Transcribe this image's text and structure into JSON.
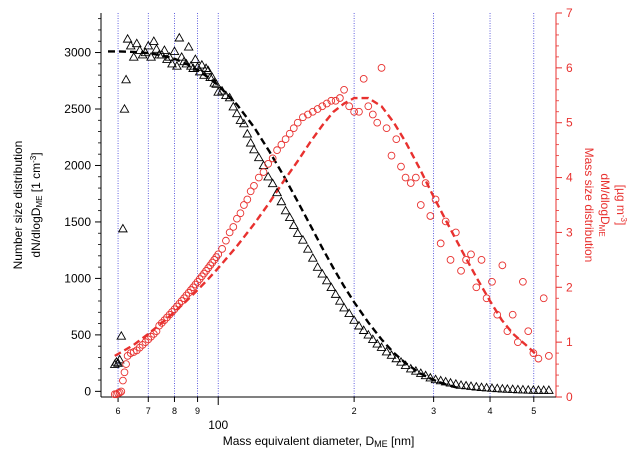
{
  "chart_data": {
    "type": "scatter",
    "xlabel": {
      "main": "Mass equivalent diameter, D",
      "sub": "ME",
      "units": "[nm]"
    },
    "x_scale": "log",
    "xlim": [
      55,
      560
    ],
    "x_major_tick": {
      "value": 100,
      "label": "100"
    },
    "x_minor_ticks": [
      {
        "value": 60,
        "label": "6"
      },
      {
        "value": 70,
        "label": "7"
      },
      {
        "value": 80,
        "label": "8"
      },
      {
        "value": 90,
        "label": "9"
      },
      {
        "value": 200,
        "label": "2"
      },
      {
        "value": 300,
        "label": "3"
      },
      {
        "value": 400,
        "label": "4"
      },
      {
        "value": 500,
        "label": "5"
      }
    ],
    "vertical_gridlines": [
      60,
      70,
      80,
      90,
      100,
      200,
      300,
      400,
      500
    ],
    "y_left": {
      "label_line1": "Number size distribution",
      "label_line2": {
        "pre": "dN/dlogD",
        "sub": "ME",
        "units_pre": "[1 cm",
        "units_sup": "-3",
        "units_post": "]"
      },
      "ylim": [
        -50,
        3350
      ],
      "ticks": [
        0,
        500,
        1000,
        1500,
        2000,
        2500,
        3000
      ],
      "color": "#000000"
    },
    "y_right": {
      "label_line1": "Mass size distribution",
      "label_line2": {
        "pre": "dM/dlogD",
        "sub": "ME"
      },
      "label_line3": {
        "pre": "[µg m",
        "sup": "-3",
        "post": "]"
      },
      "ylim": [
        0,
        7
      ],
      "ticks": [
        0,
        1,
        2,
        3,
        4,
        5,
        6,
        7
      ],
      "color": "#e8312f"
    },
    "series": [
      {
        "marker": "triangle",
        "axis": "left",
        "color": "#000000",
        "x": [
          59,
          59.5,
          60,
          60.5,
          61,
          61.5,
          62,
          62.5,
          63,
          64,
          65,
          66,
          67,
          68,
          69,
          70,
          71,
          72,
          73,
          74,
          75,
          76,
          77,
          78,
          79,
          80,
          81,
          82,
          83,
          84,
          85,
          86,
          87,
          88,
          89,
          90,
          91,
          92,
          93,
          94,
          95,
          96,
          97,
          98,
          99,
          100,
          102,
          104,
          106,
          108,
          110,
          112,
          114,
          116,
          118,
          120,
          123,
          126,
          129,
          132,
          135,
          138,
          141,
          144,
          147,
          150,
          154,
          158,
          162,
          166,
          170,
          174,
          178,
          182,
          186,
          190,
          195,
          200,
          205,
          210,
          215,
          220,
          225,
          230,
          236,
          242,
          248,
          254,
          260,
          267,
          274,
          281,
          288,
          295,
          303,
          311,
          319,
          327,
          336,
          345,
          354,
          363,
          373,
          383,
          393,
          404,
          415,
          426,
          437,
          449,
          461,
          473,
          486,
          499,
          512,
          526,
          540
        ],
        "y": [
          240,
          260,
          250,
          280,
          490,
          1440,
          2500,
          2760,
          3120,
          3060,
          2960,
          3080,
          3020,
          2980,
          3000,
          3060,
          2960,
          3100,
          3030,
          2980,
          2980,
          3020,
          2940,
          2960,
          2900,
          3010,
          2880,
          3130,
          2960,
          2920,
          2900,
          3050,
          2880,
          2860,
          2940,
          2870,
          2830,
          2890,
          2800,
          2860,
          2840,
          2780,
          2780,
          2730,
          2720,
          2650,
          2660,
          2620,
          2600,
          2520,
          2460,
          2400,
          2370,
          2280,
          2200,
          2140,
          2070,
          2000,
          1900,
          1840,
          1760,
          1680,
          1600,
          1540,
          1470,
          1400,
          1340,
          1260,
          1180,
          1100,
          1040,
          980,
          920,
          860,
          800,
          740,
          690,
          630,
          580,
          540,
          500,
          460,
          420,
          390,
          350,
          320,
          290,
          260,
          230,
          200,
          180,
          160,
          140,
          120,
          105,
          95,
          85,
          75,
          65,
          55,
          50,
          45,
          40,
          35,
          32,
          28,
          25,
          22,
          20,
          18,
          15,
          14,
          12,
          11,
          10,
          10,
          10
        ]
      },
      {
        "marker": "circle",
        "axis": "right",
        "color": "#e8312f",
        "x": [
          59,
          59.5,
          60,
          60.5,
          61,
          61.5,
          62,
          62.5,
          63,
          64,
          65,
          66,
          67,
          68,
          69,
          70,
          71,
          72,
          73,
          74,
          75,
          76,
          77,
          78,
          79,
          80,
          81,
          82,
          83,
          84,
          85,
          86,
          87,
          88,
          89,
          90,
          91,
          92,
          93,
          94,
          95,
          96,
          97,
          98,
          99,
          100,
          102,
          104,
          106,
          108,
          110,
          112,
          114,
          116,
          118,
          120,
          123,
          126,
          129,
          132,
          135,
          138,
          141,
          144,
          147,
          150,
          154,
          158,
          162,
          166,
          170,
          174,
          178,
          182,
          186,
          190,
          195,
          200,
          205,
          210,
          215,
          220,
          225,
          230,
          236,
          242,
          248,
          254,
          260,
          267,
          274,
          281,
          288,
          295,
          303,
          311,
          319,
          327,
          336,
          345,
          354,
          363,
          373,
          383,
          393,
          404,
          415,
          426,
          437,
          449,
          461,
          473,
          486,
          499,
          512,
          526,
          540
        ],
        "y": [
          0.05,
          0.05,
          0.07,
          0.08,
          0.1,
          0.3,
          0.45,
          0.6,
          0.75,
          0.8,
          0.82,
          0.85,
          0.9,
          0.95,
          1.0,
          1.05,
          1.1,
          1.15,
          1.2,
          1.3,
          1.35,
          1.4,
          1.45,
          1.5,
          1.55,
          1.6,
          1.65,
          1.7,
          1.75,
          1.8,
          1.85,
          1.9,
          1.95,
          2.0,
          2.05,
          2.1,
          2.15,
          2.2,
          2.25,
          2.3,
          2.35,
          2.4,
          2.45,
          2.5,
          2.55,
          2.6,
          2.7,
          2.85,
          3.0,
          3.1,
          3.25,
          3.35,
          3.5,
          3.6,
          3.75,
          3.85,
          4.0,
          4.1,
          4.25,
          4.35,
          4.5,
          4.6,
          4.7,
          4.8,
          4.9,
          5.0,
          5.1,
          5.15,
          5.2,
          5.25,
          5.3,
          5.35,
          5.4,
          5.4,
          5.45,
          5.6,
          5.3,
          5.2,
          5.2,
          5.8,
          5.3,
          5.15,
          5.0,
          6.0,
          4.9,
          4.4,
          4.7,
          4.2,
          4.0,
          3.9,
          4.0,
          3.5,
          3.9,
          3.3,
          3.6,
          2.8,
          3.2,
          2.5,
          3.0,
          2.3,
          2.5,
          2.6,
          2.0,
          2.5,
          1.8,
          2.1,
          1.5,
          2.4,
          1.2,
          1.5,
          1.0,
          2.1,
          1.2,
          0.8,
          0.7,
          1.8,
          0.75
        ]
      }
    ],
    "fits": [
      {
        "axis": "left",
        "color": "#000000",
        "style": "dashed",
        "x": [
          57,
          60,
          65,
          70,
          75,
          80,
          85,
          90,
          95,
          100,
          110,
          120,
          130,
          140,
          150,
          160,
          170,
          180,
          190,
          200,
          215,
          230,
          245,
          260,
          280,
          300,
          320,
          340
        ],
        "y": [
          3010,
          3010,
          3005,
          2995,
          2975,
          2945,
          2900,
          2845,
          2780,
          2710,
          2540,
          2340,
          2120,
          1900,
          1680,
          1470,
          1270,
          1090,
          930,
          790,
          610,
          460,
          340,
          250,
          160,
          100,
          60,
          30
        ]
      },
      {
        "axis": "right",
        "color": "#e8312f",
        "style": "dashed",
        "x": [
          59,
          65,
          70,
          75,
          80,
          85,
          90,
          95,
          100,
          110,
          120,
          130,
          140,
          150,
          160,
          170,
          180,
          190,
          200,
          215,
          230,
          245,
          260,
          280,
          300,
          325,
          350,
          375,
          400,
          425,
          450,
          480,
          510
        ],
        "y": [
          0.75,
          0.95,
          1.15,
          1.35,
          1.55,
          1.75,
          1.95,
          2.15,
          2.35,
          2.75,
          3.15,
          3.55,
          3.95,
          4.3,
          4.65,
          4.95,
          5.2,
          5.35,
          5.45,
          5.45,
          5.3,
          5.0,
          4.65,
          4.15,
          3.65,
          3.1,
          2.6,
          2.15,
          1.75,
          1.4,
          1.15,
          0.95,
          0.75
        ]
      }
    ]
  }
}
